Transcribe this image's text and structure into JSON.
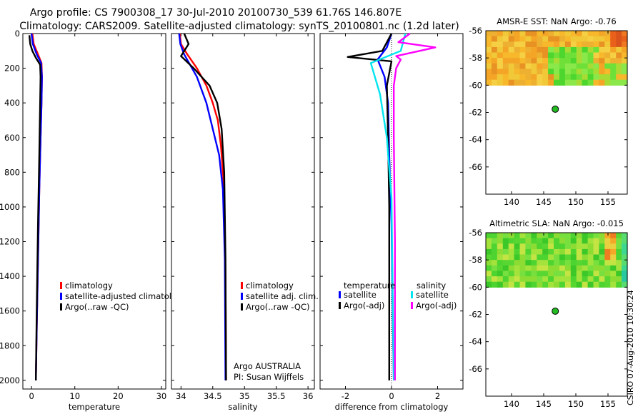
{
  "header": {
    "title_line1": "Argo profile: CS 7900308_17 30-Jul-2010 20100730_539 61.76S 146.807E",
    "title_line2": "Climatology: CARS2009. Satellite-adjusted climatology: synTS_20100801.nc (1.2d later)"
  },
  "colors": {
    "climatology": "#ff0000",
    "satellite": "#0000ff",
    "argo": "#000000",
    "sat_salinity": "#00e5ee",
    "argo_salinity": "#ff00ff",
    "marker": "#22bb22"
  },
  "chart_data": [
    {
      "type": "line",
      "id": "temperature",
      "xlabel": "temperature",
      "xlim": [
        -2,
        31
      ],
      "ylim": [
        2050,
        0
      ],
      "xticks": [
        0,
        10,
        20,
        30
      ],
      "yticks": [
        0,
        200,
        400,
        600,
        800,
        1000,
        1200,
        1400,
        1600,
        1800,
        2000
      ],
      "legend": {
        "position": "lower-right",
        "entries": [
          "climatology",
          "satellite-adjusted climatology",
          "Argo(..raw -QC)"
        ]
      },
      "series": [
        {
          "name": "climatology",
          "color_key": "climatology",
          "x": [
            0.2,
            0.5,
            1.5,
            2.3,
            2.4,
            2.3,
            2.1,
            1.8,
            1.5,
            1.2,
            1.0
          ],
          "y": [
            0,
            60,
            120,
            170,
            250,
            400,
            600,
            900,
            1300,
            1700,
            2000
          ]
        },
        {
          "name": "satellite-adjusted climatology",
          "color_key": "satellite",
          "x": [
            0.0,
            0.3,
            1.2,
            2.2,
            2.4,
            2.3,
            2.1,
            1.8,
            1.5,
            1.2,
            1.0
          ],
          "y": [
            0,
            60,
            120,
            170,
            250,
            400,
            600,
            900,
            1300,
            1700,
            2000
          ]
        },
        {
          "name": "Argo(..raw -QC)",
          "color_key": "argo",
          "x": [
            -0.5,
            -0.3,
            0.2,
            1.0,
            2.0,
            2.1,
            2.0,
            1.8,
            1.5,
            1.2,
            1.0
          ],
          "y": [
            10,
            60,
            100,
            140,
            180,
            250,
            400,
            700,
            1100,
            1600,
            2000
          ]
        }
      ]
    },
    {
      "type": "line",
      "id": "salinity",
      "xlabel": "salinity",
      "xlim": [
        33.85,
        36.1
      ],
      "ylim": [
        2050,
        0
      ],
      "xticks": [
        34,
        34.5,
        35,
        35.5,
        36
      ],
      "legend": {
        "position": "lower-right",
        "entries": [
          "climatology",
          "satellite adj. clim.",
          "Argo(..raw -QC)"
        ]
      },
      "notes": [
        "Argo AUSTRALIA",
        "PI: Susan Wijffels"
      ],
      "series": [
        {
          "name": "climatology",
          "color_key": "climatology",
          "x": [
            33.98,
            34.0,
            34.1,
            34.25,
            34.4,
            34.5,
            34.58,
            34.63,
            34.68,
            34.7,
            34.71
          ],
          "y": [
            0,
            60,
            120,
            200,
            300,
            400,
            500,
            650,
            900,
            1400,
            2000
          ]
        },
        {
          "name": "satellite adj. clim.",
          "color_key": "satellite",
          "x": [
            33.97,
            33.99,
            34.05,
            34.25,
            34.4,
            34.5,
            34.6,
            34.66,
            34.69,
            34.7
          ],
          "y": [
            0,
            60,
            120,
            250,
            400,
            550,
            700,
            900,
            1300,
            2000
          ]
        },
        {
          "name": "Argo(..raw -QC)",
          "color_key": "argo",
          "x": [
            34.05,
            34.12,
            34.0,
            34.2,
            34.45,
            34.57,
            34.64,
            34.68,
            34.7,
            34.71
          ],
          "y": [
            0,
            60,
            130,
            200,
            300,
            400,
            550,
            800,
            1300,
            2000
          ]
        }
      ]
    },
    {
      "type": "line",
      "id": "difference",
      "xlabel": "difference from climatology",
      "xlim": [
        -3.1,
        3.1
      ],
      "ylim": [
        2050,
        0
      ],
      "xticks": [
        -2,
        0,
        2
      ],
      "legend": {
        "position": "lower-right",
        "groups": [
          "temperature",
          "salinity"
        ],
        "entries": [
          "satellite",
          "Argo(-adj)",
          "satellite",
          "Argo(-adj)"
        ]
      },
      "series": [
        {
          "name": "temperature satellite",
          "color_key": "satellite",
          "x": [
            0.0,
            -0.2,
            -0.6,
            -0.3,
            -0.15,
            -0.1,
            0.0,
            0.05,
            0.1
          ],
          "y": [
            0,
            80,
            150,
            250,
            400,
            700,
            1100,
            1600,
            2000
          ]
        },
        {
          "name": "temperature Argo(-adj)",
          "color_key": "argo",
          "x": [
            0.0,
            -0.4,
            -1.9,
            0.0,
            -0.2,
            -0.15,
            -0.1,
            -0.1,
            -0.1
          ],
          "y": [
            0,
            100,
            135,
            160,
            300,
            600,
            1000,
            1500,
            2000
          ]
        },
        {
          "name": "salinity satellite",
          "color_key": "sat_salinity",
          "x": [
            0.6,
            0.4,
            -0.9,
            -0.5,
            -0.2,
            0.0,
            0.05,
            0.1
          ],
          "y": [
            0,
            100,
            170,
            350,
            600,
            950,
            1500,
            2000
          ]
        },
        {
          "name": "salinity Argo(-adj)",
          "color_key": "argo_salinity",
          "x": [
            0.8,
            0.3,
            1.9,
            0.2,
            0.4,
            0.2,
            0.1,
            0.1,
            0.15,
            0.15
          ],
          "y": [
            0,
            50,
            80,
            130,
            150,
            200,
            300,
            600,
            1200,
            2000
          ]
        }
      ]
    },
    {
      "type": "heatmap",
      "id": "amsr-sst",
      "title": "AMSR-E SST: NaN Argo: -0.76",
      "xlim": [
        136,
        158
      ],
      "ylim": [
        -68,
        -56
      ],
      "xticks": [
        140,
        145,
        150,
        155
      ],
      "yticks": [
        -56,
        -58,
        -60,
        -62,
        -64,
        -66
      ],
      "data_extent_lat": [
        -60,
        -56
      ],
      "marker": {
        "lon": 146.8,
        "lat": -61.76
      }
    },
    {
      "type": "heatmap",
      "id": "altimetric-sla",
      "title": "Altimetric SLA: NaN Argo: -0.015",
      "xlim": [
        136,
        158
      ],
      "ylim": [
        -68,
        -56
      ],
      "xticks": [
        140,
        145,
        150,
        155
      ],
      "yticks": [
        -56,
        -58,
        -60,
        -62,
        -64,
        -66
      ],
      "data_extent_lat": [
        -60,
        -56
      ],
      "marker": {
        "lon": 146.8,
        "lat": -61.76
      }
    }
  ],
  "footer": {
    "stamp": "CSIRO 07-Aug-2010 10:30:24"
  }
}
